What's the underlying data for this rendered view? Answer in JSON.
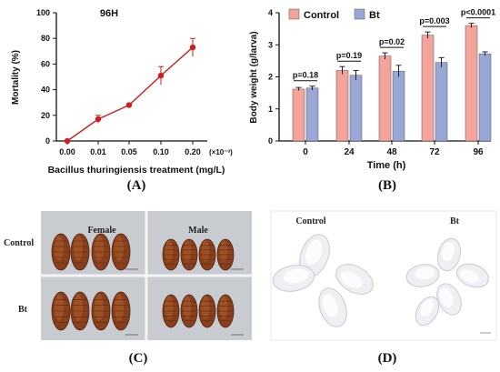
{
  "chart_data": [
    {
      "panel": "A",
      "type": "line",
      "title": "96H",
      "xlabel": "Bacillus thuringiensis treatment  (mg/L)",
      "x_multiplier_label": "(×10⁻³)",
      "ylabel": "Mortality (%)",
      "categories": [
        "0.00",
        "0.01",
        "0.05",
        "0.10",
        "0.20"
      ],
      "values": [
        0,
        17,
        28,
        51,
        73
      ],
      "errors": [
        0,
        3,
        0,
        7,
        7
      ],
      "ylim": [
        0,
        100
      ],
      "yticks": [
        0,
        20,
        40,
        60,
        80,
        100
      ],
      "color": "#cc1f1f"
    },
    {
      "panel": "B",
      "type": "bar",
      "xlabel": "Time (h)",
      "ylabel": "Body weight (g/larva)",
      "categories": [
        "0",
        "24",
        "48",
        "72",
        "96"
      ],
      "series": [
        {
          "name": "Control",
          "values": [
            1.62,
            2.2,
            2.65,
            3.3,
            3.6
          ],
          "errors": [
            0.05,
            0.12,
            0.1,
            0.1,
            0.07
          ],
          "color": "#f4a39a"
        },
        {
          "name": "Bt",
          "values": [
            1.65,
            2.05,
            2.18,
            2.45,
            2.72
          ],
          "errors": [
            0.06,
            0.15,
            0.18,
            0.15,
            0.06
          ],
          "color": "#9aa6d6"
        }
      ],
      "pvalues": [
        "p=0.18",
        "p=0.19",
        "p=0.02",
        "p=0.003",
        "p<0.0001"
      ],
      "ylim": [
        0,
        4
      ],
      "yticks": [
        0,
        1,
        2,
        3,
        4
      ],
      "legend_position": "top-left"
    }
  ],
  "panel_c": {
    "col_labels": [
      "Female",
      "Male"
    ],
    "row_labels": [
      "Control",
      "Bt"
    ]
  },
  "panel_d": {
    "labels": [
      "Control",
      "Bt"
    ]
  },
  "captions": [
    "(A)",
    "(B)",
    "(C)",
    "(D)"
  ]
}
